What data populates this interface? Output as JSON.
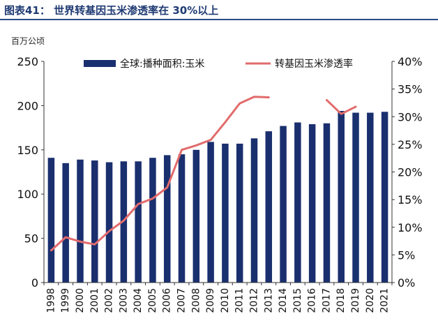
{
  "header": {
    "title": "图表41： 世界转基因玉米渗透率在 30%以上",
    "unit": "百万公顷"
  },
  "chart_data": {
    "type": "bar+line",
    "categories": [
      "1998",
      "1999",
      "2000",
      "2001",
      "2002",
      "2003",
      "2004",
      "2005",
      "2006",
      "2007",
      "2008",
      "2009",
      "2010",
      "2011",
      "2012",
      "2013",
      "2014",
      "2015",
      "2016",
      "2017",
      "2018",
      "2019",
      "2020",
      "2021"
    ],
    "series": [
      {
        "name": "全球:播种面积:玉米",
        "type": "bar",
        "axis": "left",
        "color": "#1a2f6e",
        "values": [
          141,
          135,
          139,
          138,
          136,
          137,
          137,
          141,
          144,
          145,
          150,
          159,
          157,
          157,
          163,
          171,
          177,
          181,
          179,
          180,
          194,
          192,
          192,
          193
        ]
      },
      {
        "name": "转基因玉米渗透率",
        "type": "line",
        "axis": "right",
        "color": "#e26b6b",
        "x": [
          "1998",
          "1999",
          "2000",
          "2001",
          "2002",
          "2003",
          "2004",
          "2005",
          "2006",
          "2007",
          "2008",
          "2009",
          "2010",
          "2011",
          "2012",
          "2013",
          "2017",
          "2018",
          "2019"
        ],
        "values": [
          5.8,
          8.2,
          7.4,
          6.9,
          9.3,
          11.2,
          14.2,
          15.2,
          17.2,
          24.0,
          24.8,
          25.8,
          29.0,
          32.4,
          33.6,
          33.5,
          33.0,
          30.5,
          31.8
        ]
      }
    ],
    "y_left": {
      "ylim": [
        0,
        250
      ],
      "ticks": [
        "0",
        "50",
        "100",
        "150",
        "200",
        "250"
      ]
    },
    "y_right": {
      "ylim": [
        0,
        40
      ],
      "ticks": [
        "0%",
        "5%",
        "10%",
        "15%",
        "20%",
        "25%",
        "30%",
        "35%",
        "40%"
      ]
    },
    "grid": false,
    "legend": "top-center"
  }
}
